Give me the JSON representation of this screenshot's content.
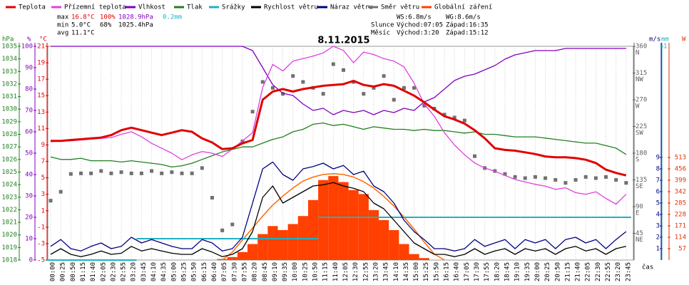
{
  "chart_data": {
    "type": "line",
    "title": "8.11.2015",
    "x_label": "čas",
    "stats": {
      "max": [
        "max",
        "16.8°C",
        "100%",
        "1028.9hPa",
        "0.2mm"
      ],
      "min": [
        "min",
        "5.0°C",
        "68%",
        "1025.4hPa"
      ],
      "avg": [
        "avg",
        "11.1°C"
      ],
      "wind": [
        "WS:6.8m/s",
        "WG:8.6m/s"
      ],
      "sun": [
        "Slunce",
        "Východ:07:05",
        "Západ:16:35"
      ],
      "moon": [
        "Měsíc",
        "Východ:3:20",
        "Západ:15:12"
      ]
    },
    "axes": {
      "hpa": {
        "label": "hPa",
        "lim": [
          1018,
          1035
        ],
        "ticks": [
          1018,
          1019,
          1020,
          1021,
          1022,
          1023,
          1024,
          1025,
          1026,
          1027,
          1028,
          1029,
          1030,
          1031,
          1032,
          1033,
          1034,
          1035
        ],
        "color": "#208020"
      },
      "pct": {
        "label": "%",
        "lim": [
          0,
          100
        ],
        "ticks": [
          0,
          10,
          20,
          30,
          40,
          50,
          60,
          70,
          80,
          90,
          100
        ],
        "color": "#8000c0"
      },
      "temp": {
        "label": "°C",
        "lim": [
          -5,
          21
        ],
        "ticks": [
          -5,
          -3,
          -1,
          1,
          3,
          5,
          7,
          9,
          11,
          13,
          15,
          17,
          19,
          21
        ],
        "color": "#e00000"
      },
      "dir": {
        "lim": [
          0,
          360
        ],
        "ticks": [
          45,
          90,
          135,
          180,
          225,
          270,
          315,
          360
        ],
        "tick_names": [
          "NE",
          "E",
          "SE",
          "S",
          "SW",
          "W",
          "NW",
          "N"
        ],
        "color": "#606060"
      },
      "wind": {
        "label": "m/s",
        "lim": [
          0,
          18.75
        ],
        "ticks": [
          1,
          2,
          3,
          4,
          5,
          6,
          7,
          8,
          9
        ],
        "color": "#000080"
      },
      "mm": {
        "label": "mm",
        "lim": [
          0,
          1
        ],
        "ticks": [
          1
        ],
        "color": "#20b0c0"
      },
      "w": {
        "label": "W",
        "lim": [
          0,
          1068.75
        ],
        "ticks": [
          57,
          114,
          171,
          228,
          285,
          342,
          399,
          456,
          513
        ],
        "color": "#e03000"
      }
    },
    "categories": [
      "00:00",
      "00:25",
      "00:50",
      "01:15",
      "01:40",
      "02:05",
      "02:30",
      "02:55",
      "03:20",
      "03:45",
      "04:10",
      "04:35",
      "05:00",
      "05:25",
      "05:50",
      "06:15",
      "06:40",
      "07:05",
      "07:30",
      "07:55",
      "08:20",
      "08:45",
      "09:10",
      "09:35",
      "10:00",
      "10:25",
      "10:50",
      "11:15",
      "11:40",
      "12:05",
      "12:30",
      "12:55",
      "13:20",
      "13:45",
      "14:10",
      "14:35",
      "15:00",
      "15:25",
      "15:50",
      "16:15",
      "16:40",
      "17:05",
      "17:30",
      "17:55",
      "18:20",
      "18:45",
      "19:10",
      "19:35",
      "20:00",
      "20:25",
      "20:50",
      "21:15",
      "21:40",
      "22:05",
      "22:30",
      "22:55",
      "23:20",
      "23:45"
    ],
    "series": [
      {
        "name": "Globální záření",
        "color": "#ff4000",
        "axis": "w",
        "style": "bars",
        "values": [
          0,
          0,
          0,
          0,
          0,
          0,
          0,
          0,
          0,
          0,
          0,
          0,
          0,
          0,
          0,
          0,
          0,
          5,
          15,
          40,
          80,
          130,
          170,
          150,
          180,
          220,
          300,
          400,
          420,
          390,
          350,
          330,
          250,
          200,
          150,
          80,
          30,
          10,
          0,
          0,
          0,
          0,
          0,
          0,
          0,
          0,
          0,
          0,
          0,
          0,
          0,
          0,
          0,
          0,
          0,
          0,
          0,
          0
        ],
        "theoretical_values": [
          null,
          null,
          null,
          null,
          null,
          null,
          null,
          null,
          null,
          null,
          null,
          null,
          null,
          null,
          null,
          null,
          null,
          0,
          40,
          100,
          160,
          220,
          275,
          320,
          360,
          395,
          415,
          428,
          432,
          428,
          415,
          392,
          360,
          318,
          270,
          215,
          155,
          90,
          30,
          0,
          null,
          null,
          null,
          null,
          null,
          null,
          null,
          null,
          null,
          null,
          null,
          null,
          null,
          null,
          null,
          null,
          null,
          null
        ]
      },
      {
        "name": "Srážky",
        "color": "#20b0c0",
        "axis": "mm",
        "style": "step",
        "values": [
          0,
          0,
          0,
          0,
          0,
          0,
          0,
          0,
          0,
          0.1,
          0.1,
          0.1,
          0.1,
          0.1,
          0.1,
          0.1,
          0.1,
          0.1,
          0.1,
          0.1,
          0.1,
          0.1,
          0.1,
          0.1,
          0.1,
          0.1,
          0.1,
          0.2,
          0.2,
          0.2,
          0.2,
          0.2,
          0.2,
          0.2,
          0.2,
          0.2,
          0.2,
          0.2,
          0.2,
          0.2,
          0.2,
          0.2,
          0.2,
          0.2,
          0.2,
          0.2,
          0.2,
          0.2,
          0.2,
          0.2,
          0.2,
          0.2,
          0.2,
          0.2,
          0.2,
          0.2,
          0.2,
          0.2
        ]
      },
      {
        "name": "Směr větru",
        "color": "#707070",
        "axis": "dir",
        "style": "dots",
        "values": [
          100,
          115,
          145,
          146,
          146,
          150,
          146,
          148,
          146,
          146,
          150,
          146,
          148,
          146,
          146,
          155,
          105,
          50,
          60,
          200,
          250,
          300,
          290,
          280,
          310,
          300,
          290,
          280,
          330,
          320,
          300,
          280,
          290,
          310,
          270,
          290,
          290,
          260,
          255,
          245,
          240,
          235,
          175,
          155,
          150,
          145,
          140,
          138,
          140,
          138,
          135,
          130,
          135,
          140,
          138,
          140,
          135,
          130
        ]
      },
      {
        "name": "Tlak",
        "color": "#208020",
        "axis": "hpa",
        "style": "line",
        "values": [
          1026.2,
          1026.0,
          1026.0,
          1026.1,
          1025.9,
          1025.9,
          1025.9,
          1025.8,
          1025.9,
          1025.8,
          1025.7,
          1025.6,
          1025.4,
          1025.5,
          1025.7,
          1026.0,
          1026.3,
          1026.6,
          1026.8,
          1027.0,
          1027.0,
          1027.3,
          1027.6,
          1027.8,
          1028.2,
          1028.4,
          1028.8,
          1028.9,
          1028.7,
          1028.8,
          1028.6,
          1028.4,
          1028.6,
          1028.5,
          1028.4,
          1028.4,
          1028.3,
          1028.4,
          1028.3,
          1028.3,
          1028.2,
          1028.1,
          1028.2,
          1028.0,
          1028.0,
          1027.9,
          1027.8,
          1027.8,
          1027.8,
          1027.7,
          1027.6,
          1027.5,
          1027.4,
          1027.3,
          1027.3,
          1027.1,
          1026.9,
          1026.4
        ]
      },
      {
        "name": "Vlhkost",
        "color": "#8000c0",
        "axis": "pct",
        "style": "line",
        "values": [
          100,
          100,
          100,
          100,
          100,
          100,
          100,
          100,
          100,
          100,
          100,
          100,
          100,
          100,
          100,
          100,
          100,
          100,
          100,
          100,
          98,
          90,
          82,
          78,
          77,
          73,
          70,
          71,
          68,
          70,
          69,
          70,
          68,
          70,
          69,
          71,
          70,
          74,
          76,
          80,
          84,
          86,
          87,
          89,
          91,
          94,
          96,
          97,
          98,
          98,
          98,
          99,
          99,
          99,
          99,
          99,
          99,
          99
        ]
      },
      {
        "name": "Přízemní teplota",
        "color": "#e040e0",
        "axis": "temp",
        "style": "line",
        "values": [
          9.4,
          9.5,
          9.5,
          9.6,
          9.7,
          9.8,
          9.9,
          10.3,
          10.6,
          10.0,
          9.2,
          8.6,
          8.0,
          7.2,
          7.8,
          8.2,
          8.0,
          7.6,
          8.5,
          9.5,
          10.5,
          16.0,
          18.8,
          18.0,
          19.2,
          19.5,
          19.8,
          20.2,
          21.0,
          20.5,
          19.0,
          20.3,
          20.0,
          19.5,
          19.2,
          18.5,
          16.5,
          14.0,
          12.5,
          10.5,
          9.0,
          7.8,
          6.8,
          6.2,
          5.8,
          5.3,
          4.8,
          4.5,
          4.2,
          4.0,
          3.6,
          3.8,
          3.2,
          3.0,
          3.3,
          2.5,
          1.8,
          3.0
        ]
      },
      {
        "name": "Teplota",
        "color": "#e00000",
        "axis": "temp",
        "style": "thick",
        "values": [
          9.5,
          9.5,
          9.6,
          9.7,
          9.8,
          9.9,
          10.2,
          10.8,
          11.1,
          10.8,
          10.5,
          10.2,
          10.5,
          10.8,
          10.6,
          9.8,
          9.3,
          8.5,
          8.6,
          9.2,
          9.6,
          14.5,
          15.5,
          15.8,
          15.5,
          15.8,
          16.0,
          16.2,
          16.3,
          16.4,
          16.8,
          16.3,
          16.1,
          16.4,
          16.2,
          15.6,
          15.0,
          14.2,
          13.3,
          12.5,
          12.1,
          11.6,
          10.8,
          9.8,
          8.6,
          8.4,
          8.3,
          8.1,
          7.9,
          7.6,
          7.5,
          7.5,
          7.4,
          7.2,
          6.8,
          6.0,
          5.6,
          5.3
        ]
      },
      {
        "name": "Náraz větru",
        "color": "#000080",
        "axis": "wind",
        "style": "line",
        "values": [
          1.2,
          1.8,
          1.0,
          0.8,
          1.2,
          1.5,
          1.0,
          1.2,
          2.0,
          1.5,
          1.8,
          1.5,
          1.2,
          1.0,
          1.0,
          1.8,
          1.5,
          0.8,
          1.0,
          2.0,
          5.0,
          8.0,
          8.6,
          7.5,
          7.0,
          8.0,
          8.2,
          8.5,
          8.0,
          8.3,
          7.5,
          7.8,
          6.5,
          6.0,
          5.0,
          3.5,
          2.5,
          1.8,
          1.0,
          1.0,
          0.8,
          1.0,
          1.8,
          1.2,
          1.5,
          1.8,
          1.0,
          1.8,
          1.5,
          1.8,
          1.0,
          1.8,
          2.0,
          1.5,
          1.8,
          1.0,
          1.8,
          2.5
        ]
      },
      {
        "name": "Rychlost větru",
        "color": "#000000",
        "axis": "wind",
        "style": "line",
        "values": [
          0.5,
          1.0,
          0.5,
          0.3,
          0.5,
          0.8,
          0.5,
          0.6,
          1.2,
          0.8,
          1.0,
          0.8,
          0.6,
          0.5,
          0.5,
          1.0,
          0.7,
          0.3,
          0.5,
          1.0,
          2.5,
          5.5,
          6.5,
          5.0,
          5.5,
          6.0,
          6.5,
          6.6,
          6.8,
          6.5,
          6.3,
          6.0,
          5.0,
          4.5,
          3.5,
          2.5,
          1.5,
          1.0,
          0.5,
          0.5,
          0.3,
          0.5,
          1.0,
          0.5,
          0.8,
          1.0,
          0.5,
          1.0,
          0.8,
          1.0,
          0.5,
          1.0,
          1.2,
          0.8,
          1.0,
          0.5,
          1.0,
          1.2
        ]
      }
    ],
    "legend_order": [
      "Teplota",
      "Přízemní teplota",
      "Vlhkost",
      "Tlak",
      "Srážky",
      "Rychlost větru",
      "Náraz větru",
      "Směr větru",
      "Globální záření"
    ]
  }
}
